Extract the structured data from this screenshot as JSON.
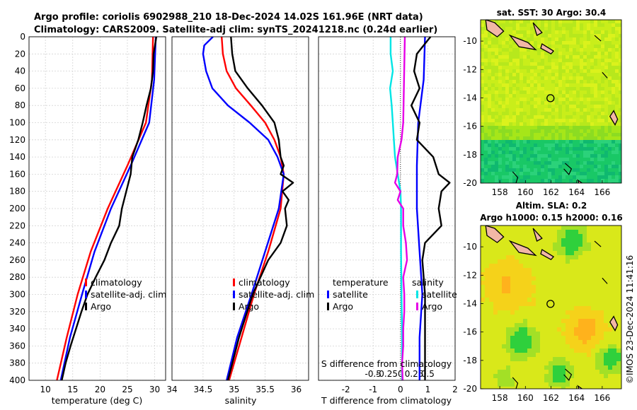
{
  "title_line1": "Argo profile: coriolis 6902988_210 18-Dec-2024 14.02S 161.96E (NRT data)",
  "title_line2": "Climatology: CARS2009. Satellite-adj clim: synTS_20241218.nc (0.24d earlier)",
  "watermark": "©IMOS 23-Dec-2024 11:41:16",
  "colors": {
    "climatology": "#ff0000",
    "satellite": "#0000ff",
    "argo": "#000000",
    "sat_salt": "#00e5e5",
    "argo_salt": "#e600e6"
  },
  "depth_ticks": [
    "0",
    "20",
    "40",
    "60",
    "80",
    "100",
    "120",
    "140",
    "160",
    "180",
    "200",
    "220",
    "240",
    "260",
    "280",
    "300",
    "320",
    "340",
    "360",
    "380",
    "400"
  ],
  "chart_data": [
    {
      "type": "line",
      "xlabel": "temperature (deg C)",
      "ylabel": "depth",
      "xlim": [
        7,
        32
      ],
      "ylim": [
        0,
        400
      ],
      "xticks": [
        "10",
        "15",
        "20",
        "25",
        "30"
      ],
      "legend": [
        "climatology",
        "satellite-adj. clim",
        "Argo"
      ],
      "series": [
        {
          "name": "climatology",
          "depth": [
            0,
            50,
            100,
            150,
            200,
            250,
            300,
            350,
            400
          ],
          "values": [
            29.7,
            29.5,
            28.4,
            25.0,
            21.4,
            18.3,
            15.9,
            13.9,
            12.1
          ]
        },
        {
          "name": "satellite-adj. clim",
          "depth": [
            0,
            50,
            100,
            150,
            200,
            250,
            300,
            350,
            400
          ],
          "values": [
            30.2,
            29.9,
            29.0,
            25.6,
            22.0,
            19.0,
            16.7,
            14.5,
            12.8
          ]
        },
        {
          "name": "Argo",
          "depth": [
            0,
            20,
            40,
            60,
            80,
            100,
            120,
            140,
            160,
            180,
            200,
            220,
            240,
            260,
            280,
            300,
            320,
            340,
            360,
            380,
            400
          ],
          "values": [
            30.3,
            29.8,
            29.7,
            29.3,
            28.5,
            27.8,
            27.0,
            25.9,
            25.6,
            24.8,
            24.0,
            23.5,
            22.0,
            20.8,
            19.2,
            17.7,
            16.6,
            15.6,
            14.6,
            13.7,
            13.0
          ]
        }
      ]
    },
    {
      "type": "line",
      "xlabel": "salinity",
      "ylabel": "depth",
      "xlim": [
        34,
        36.2
      ],
      "ylim": [
        0,
        400
      ],
      "xticks": [
        "34",
        "34.5",
        "35",
        "35.5",
        "36"
      ],
      "legend": [
        "climatology",
        "satellite-adj. clim",
        "Argo"
      ],
      "series": [
        {
          "name": "climatology",
          "depth": [
            0,
            20,
            40,
            60,
            80,
            100,
            120,
            140,
            160,
            200,
            250,
            300,
            350,
            400
          ],
          "values": [
            34.8,
            34.82,
            34.88,
            35.03,
            35.27,
            35.5,
            35.65,
            35.75,
            35.8,
            35.75,
            35.55,
            35.32,
            35.12,
            34.92
          ]
        },
        {
          "name": "satellite-adj. clim",
          "depth": [
            0,
            10,
            20,
            40,
            60,
            80,
            100,
            120,
            140,
            160,
            200,
            250,
            300,
            350,
            400
          ],
          "values": [
            34.66,
            34.52,
            34.5,
            34.55,
            34.65,
            34.9,
            35.25,
            35.55,
            35.7,
            35.8,
            35.72,
            35.5,
            35.28,
            35.05,
            34.88
          ]
        },
        {
          "name": "Argo",
          "depth": [
            0,
            20,
            40,
            60,
            80,
            100,
            120,
            140,
            150,
            160,
            170,
            180,
            190,
            200,
            220,
            240,
            260,
            300,
            350,
            400
          ],
          "values": [
            34.95,
            34.97,
            35.02,
            35.22,
            35.45,
            35.65,
            35.72,
            35.75,
            35.8,
            35.75,
            35.95,
            35.78,
            35.88,
            35.82,
            35.85,
            35.75,
            35.55,
            35.3,
            35.08,
            34.9
          ]
        }
      ]
    },
    {
      "type": "line",
      "xlabel": "T difference from climatology",
      "x2label": "S difference from climatology",
      "ylabel": "depth",
      "xlim": [
        -3,
        2
      ],
      "ylim": [
        0,
        400
      ],
      "xticks": [
        "-2",
        "-1",
        "0",
        "1",
        "2"
      ],
      "x2ticks": [
        "-0.5",
        "-0.25",
        "0",
        "0.25",
        "0.5"
      ],
      "legend_temp_title": "temperature",
      "legend_salt_title": "salinity",
      "legend_entries": [
        "satellite",
        "Argo"
      ],
      "series": [
        {
          "name": "T satellite",
          "depth": [
            0,
            50,
            100,
            150,
            200,
            250,
            300,
            350,
            400
          ],
          "values": [
            0.9,
            0.85,
            0.65,
            0.6,
            0.6,
            0.7,
            0.8,
            0.7,
            0.7
          ]
        },
        {
          "name": "T Argo",
          "depth": [
            0,
            20,
            40,
            60,
            80,
            100,
            120,
            140,
            160,
            170,
            180,
            200,
            220,
            240,
            260,
            300,
            350,
            400
          ],
          "values": [
            1.1,
            0.6,
            0.5,
            0.7,
            0.4,
            0.7,
            0.6,
            1.2,
            1.4,
            1.8,
            1.5,
            1.4,
            1.5,
            0.9,
            0.8,
            0.9,
            0.9,
            0.9
          ]
        },
        {
          "name": "S satellite",
          "depth": [
            0,
            20,
            40,
            60,
            80,
            100,
            120,
            140,
            160,
            180,
            200,
            250,
            300,
            350,
            400
          ],
          "values": [
            -0.18,
            -0.18,
            -0.14,
            -0.19,
            -0.16,
            -0.14,
            -0.12,
            -0.1,
            -0.05,
            0.0,
            0.01,
            0.01,
            0.02,
            0.03,
            0.03
          ]
        },
        {
          "name": "S Argo",
          "depth": [
            0,
            100,
            120,
            140,
            160,
            170,
            180,
            190,
            200,
            220,
            240,
            260,
            280,
            300,
            320,
            340,
            360,
            380,
            400
          ],
          "values": [
            0.08,
            0.05,
            0.02,
            -0.05,
            -0.06,
            -0.1,
            0.0,
            -0.05,
            0.05,
            0.05,
            0.1,
            0.12,
            0.05,
            0.07,
            0.07,
            0.05,
            0.05,
            0.03,
            0.04
          ]
        }
      ]
    },
    {
      "type": "heatmap",
      "title": "sat. SST: 30 Argo: 30.4",
      "xlim": [
        156.5,
        167.5
      ],
      "ylim": [
        -20,
        -8.5
      ],
      "xticks": [
        "158",
        "160",
        "162",
        "164",
        "166"
      ],
      "yticks": [
        "-10",
        "-12",
        "-14",
        "-16",
        "-18",
        "-20"
      ],
      "marker": {
        "lon": 161.96,
        "lat": -14.02
      }
    },
    {
      "type": "heatmap",
      "title": "Altim. SLA: 0.2",
      "subtitle": "Argo h1000: 0.15 h2000: 0.16",
      "xlim": [
        156.5,
        167.5
      ],
      "ylim": [
        -20,
        -8.5
      ],
      "xticks": [
        "158",
        "160",
        "162",
        "164",
        "166"
      ],
      "yticks": [
        "-10",
        "-12",
        "-14",
        "-16",
        "-18",
        "-20"
      ],
      "marker": {
        "lon": 161.96,
        "lat": -14.02
      }
    }
  ]
}
